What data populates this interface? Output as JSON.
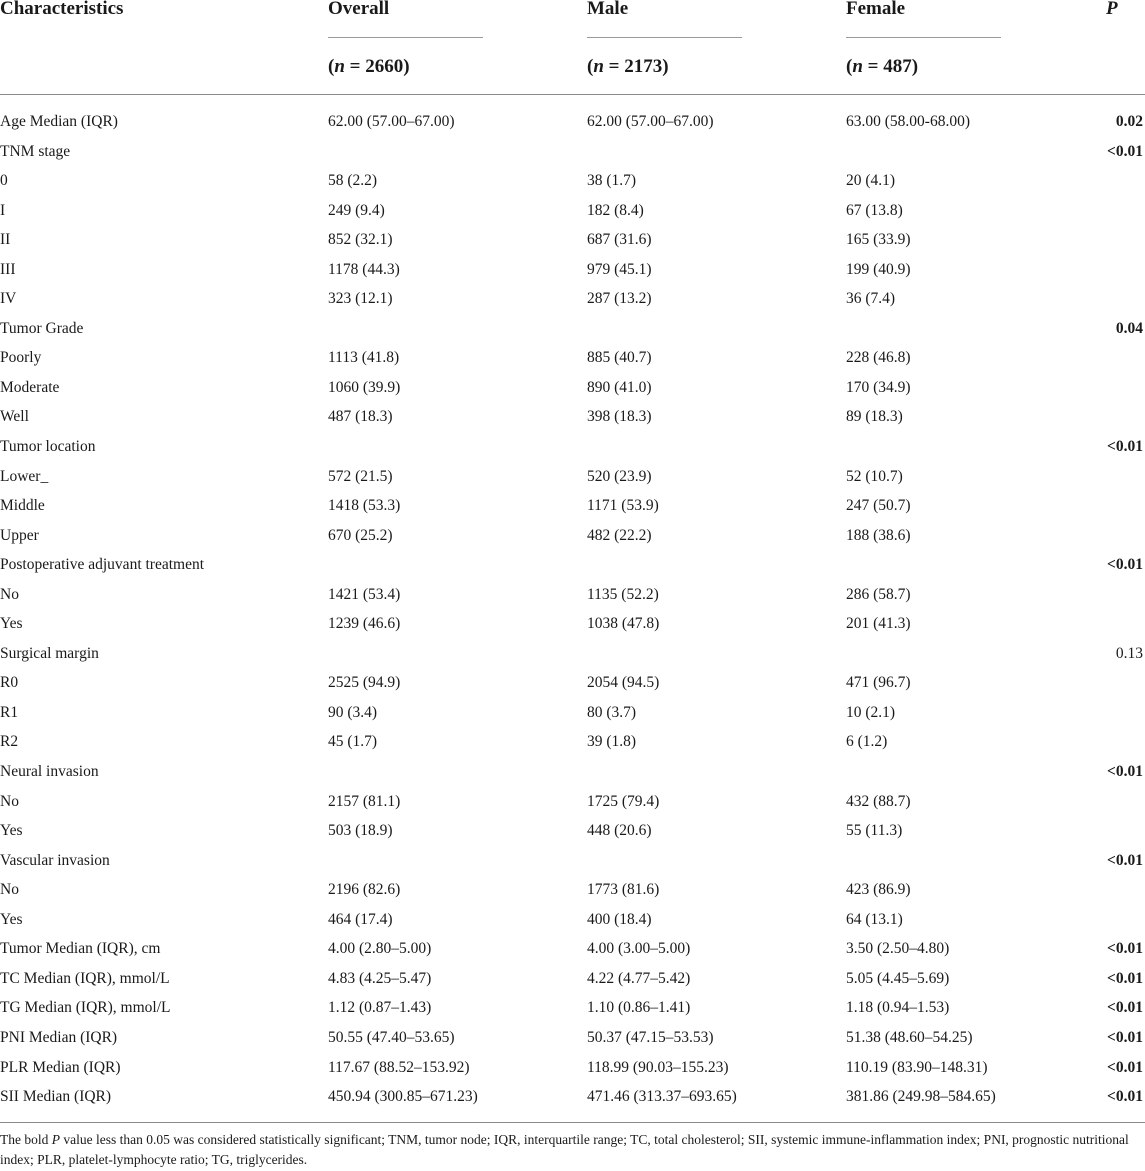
{
  "table": {
    "columns": {
      "characteristics": "Characteristics",
      "overall": "Overall",
      "male": "Male",
      "female": "Female",
      "p": "P"
    },
    "n_labels": {
      "overall": "2660",
      "male": "2173",
      "female": "487"
    },
    "rows": [
      {
        "label": "Age Median (IQR)",
        "overall": "62.00 (57.00–67.00)",
        "male": "62.00 (57.00–67.00)",
        "female": "63.00 (58.00-68.00)",
        "p": "0.02",
        "p_bold": true
      },
      {
        "label": "TNM stage",
        "overall": "",
        "male": "",
        "female": "",
        "p": "<0.01",
        "p_bold": true
      },
      {
        "label": "0",
        "overall": "58 (2.2)",
        "male": "38 (1.7)",
        "female": "20 (4.1)",
        "p": "",
        "p_bold": false
      },
      {
        "label": "I",
        "overall": "249 (9.4)",
        "male": "182 (8.4)",
        "female": "67 (13.8)",
        "p": "",
        "p_bold": false
      },
      {
        "label": "II",
        "overall": "852 (32.1)",
        "male": "687 (31.6)",
        "female": "165 (33.9)",
        "p": "",
        "p_bold": false
      },
      {
        "label": "III",
        "overall": "1178 (44.3)",
        "male": "979 (45.1)",
        "female": "199 (40.9)",
        "p": "",
        "p_bold": false
      },
      {
        "label": "IV",
        "overall": "323 (12.1)",
        "male": "287 (13.2)",
        "female": "36 (7.4)",
        "p": "",
        "p_bold": false
      },
      {
        "label": "Tumor Grade",
        "overall": "",
        "male": "",
        "female": "",
        "p": "0.04",
        "p_bold": true
      },
      {
        "label": "Poorly",
        "overall": "1113 (41.8)",
        "male": "885 (40.7)",
        "female": "228 (46.8)",
        "p": "",
        "p_bold": false
      },
      {
        "label": "Moderate",
        "overall": "1060 (39.9)",
        "male": "890 (41.0)",
        "female": "170 (34.9)",
        "p": "",
        "p_bold": false
      },
      {
        "label": "Well",
        "overall": "487 (18.3)",
        "male": "398 (18.3)",
        "female": "89 (18.3)",
        "p": "",
        "p_bold": false
      },
      {
        "label": "Tumor location",
        "overall": "",
        "male": "",
        "female": "",
        "p": "<0.01",
        "p_bold": true
      },
      {
        "label": "Lower_",
        "overall": "572 (21.5)",
        "male": "520 (23.9)",
        "female": "52 (10.7)",
        "p": "",
        "p_bold": false
      },
      {
        "label": "Middle",
        "overall": "1418 (53.3)",
        "male": "1171 (53.9)",
        "female": "247 (50.7)",
        "p": "",
        "p_bold": false
      },
      {
        "label": "Upper",
        "overall": "670 (25.2)",
        "male": "482 (22.2)",
        "female": "188 (38.6)",
        "p": "",
        "p_bold": false
      },
      {
        "label": "Postoperative adjuvant treatment",
        "overall": "",
        "male": "",
        "female": "",
        "p": "<0.01",
        "p_bold": true
      },
      {
        "label": "No",
        "overall": "1421 (53.4)",
        "male": "1135 (52.2)",
        "female": "286 (58.7)",
        "p": "",
        "p_bold": false
      },
      {
        "label": "Yes",
        "overall": "1239 (46.6)",
        "male": "1038 (47.8)",
        "female": "201 (41.3)",
        "p": "",
        "p_bold": false
      },
      {
        "label": "Surgical margin",
        "overall": "",
        "male": "",
        "female": "",
        "p": "0.13",
        "p_bold": false
      },
      {
        "label": "R0",
        "overall": "2525 (94.9)",
        "male": "2054 (94.5)",
        "female": "471 (96.7)",
        "p": "",
        "p_bold": false
      },
      {
        "label": "R1",
        "overall": "90 (3.4)",
        "male": "80 (3.7)",
        "female": "10 (2.1)",
        "p": "",
        "p_bold": false
      },
      {
        "label": "R2",
        "overall": "45 (1.7)",
        "male": "39 (1.8)",
        "female": "6 (1.2)",
        "p": "",
        "p_bold": false
      },
      {
        "label": "Neural invasion",
        "overall": "",
        "male": "",
        "female": "",
        "p": "<0.01",
        "p_bold": true
      },
      {
        "label": "No",
        "overall": "2157 (81.1)",
        "male": "1725 (79.4)",
        "female": "432 (88.7)",
        "p": "",
        "p_bold": false
      },
      {
        "label": "Yes",
        "overall": "503 (18.9)",
        "male": "448 (20.6)",
        "female": "55 (11.3)",
        "p": "",
        "p_bold": false
      },
      {
        "label": "Vascular invasion",
        "overall": "",
        "male": "",
        "female": "",
        "p": "<0.01",
        "p_bold": true
      },
      {
        "label": "No",
        "overall": "2196 (82.6)",
        "male": "1773 (81.6)",
        "female": "423 (86.9)",
        "p": "",
        "p_bold": false
      },
      {
        "label": "Yes",
        "overall": "464 (17.4)",
        "male": "400 (18.4)",
        "female": "64 (13.1)",
        "p": "",
        "p_bold": false
      },
      {
        "label": "Tumor Median (IQR), cm",
        "overall": "4.00 (2.80–5.00)",
        "male": "4.00 (3.00–5.00)",
        "female": "3.50 (2.50–4.80)",
        "p": "<0.01",
        "p_bold": true
      },
      {
        "label": "TC Median (IQR), mmol/L",
        "overall": "4.83 (4.25–5.47)",
        "male": "4.22 (4.77–5.42)",
        "female": "5.05 (4.45–5.69)",
        "p": "<0.01",
        "p_bold": true
      },
      {
        "label": "TG Median (IQR), mmol/L",
        "overall": "1.12 (0.87–1.43)",
        "male": "1.10 (0.86–1.41)",
        "female": "1.18 (0.94–1.53)",
        "p": "<0.01",
        "p_bold": true
      },
      {
        "label": "PNI Median (IQR)",
        "overall": "50.55 (47.40–53.65)",
        "male": "50.37 (47.15–53.53)",
        "female": "51.38 (48.60–54.25)",
        "p": "<0.01",
        "p_bold": true
      },
      {
        "label": "PLR Median (IQR)",
        "overall": "117.67 (88.52–153.92)",
        "male": "118.99 (90.03–155.23)",
        "female": "110.19 (83.90–148.31)",
        "p": "<0.01",
        "p_bold": true
      },
      {
        "label": "SII Median (IQR)",
        "overall": "450.94 (300.85–671.23)",
        "male": "471.46 (313.37–693.65)",
        "female": "381.86 (249.98–584.65)",
        "p": "<0.01",
        "p_bold": true
      }
    ]
  },
  "footnote": {
    "part1": "The bold ",
    "p_italic": "P",
    "part2": " value less than 0.05 was considered statistically significant; TNM, tumor node; IQR, interquartile range; TC, total cholesterol; SII, systemic immune-inflammation index; PNI, prognostic nutritional index; PLR, platelet-lymphocyte ratio; TG, triglycerides."
  }
}
